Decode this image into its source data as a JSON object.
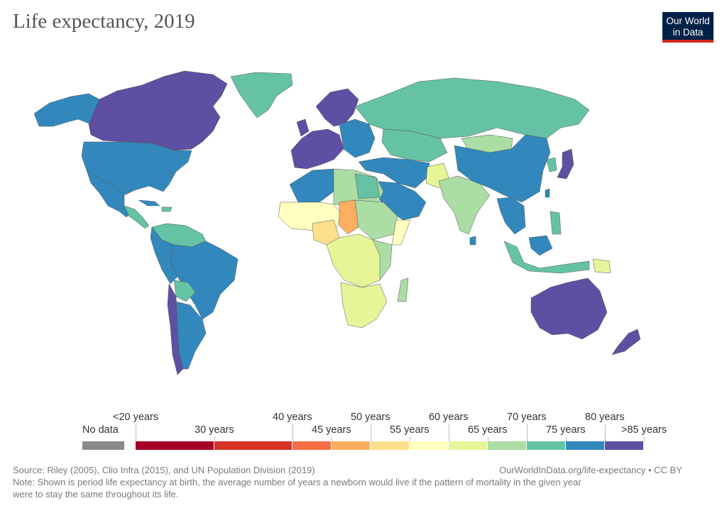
{
  "title": "Life expectancy, 2019",
  "logo": {
    "line1": "Our World",
    "line2": "in Data"
  },
  "legend": {
    "no_data": "No data",
    "top_labels": [
      "<20 years",
      "40 years",
      "50 years",
      "60 years",
      "70 years",
      "80 years"
    ],
    "bottom_labels": [
      "30 years",
      "45 years",
      "55 years",
      "65 years",
      "75 years",
      ">85 years"
    ],
    "colors": {
      "no_data": "#8a8a8a",
      "lt20": "#a50026",
      "b30": "#d73027",
      "b45": "#f46d43",
      "b50": "#fdae61",
      "b55": "#fee08b",
      "b60": "#ffffbf",
      "b65": "#e6f598",
      "b70": "#abdda4",
      "b75": "#66c2a5",
      "b80": "#3288bd",
      "gt85": "#5e4fa2"
    }
  },
  "footer": {
    "source": "Source: Riley (2005), Clio Infra (2015), and UN Population Division (2019)",
    "url": "OurWorldInData.org/life-expectancy • CC BY",
    "note_line1": "Note: Shown is period life expectancy at birth, the average number of years a newborn would live if the pattern of mortality in the given year",
    "note_line2": "were to stay the same throughout its life."
  }
}
